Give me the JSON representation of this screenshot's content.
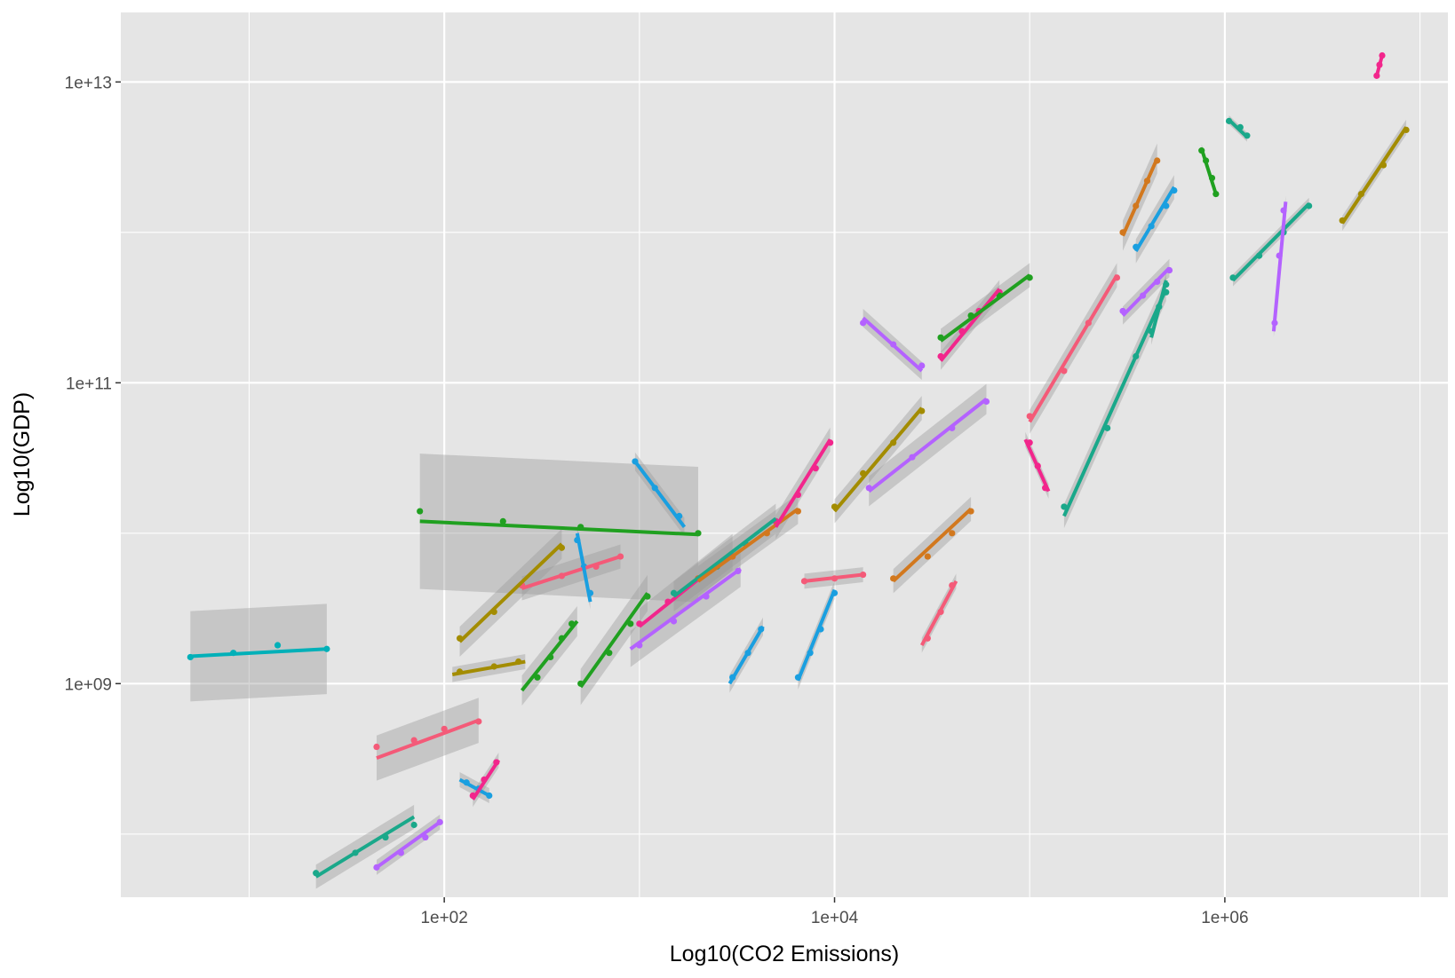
{
  "chart_data": {
    "type": "scatter",
    "title": "",
    "xlabel": "Log10(CO2 Emissions)",
    "ylabel": "Log10(GDP)",
    "x_scale": "log10",
    "y_scale": "log10",
    "xlim": [
      2.2,
      13900000
    ],
    "ylim": [
      38000000,
      29000000000000
    ],
    "x_ticks": [
      {
        "value": 100,
        "label": "1e+02"
      },
      {
        "value": 10000,
        "label": "1e+04"
      },
      {
        "value": 1000000,
        "label": "1e+06"
      }
    ],
    "y_ticks": [
      {
        "value": 1000000000,
        "label": "1e+09"
      },
      {
        "value": 100000000000,
        "label": "1e+11"
      },
      {
        "value": 10000000000000,
        "label": "1e+13"
      }
    ],
    "grid": true,
    "legend": "none",
    "background_color": "#e5e5e5",
    "grid_color": "#ffffff",
    "ribbon_color": "#999999",
    "series": [
      {
        "color": "#00b0b8",
        "x": [
          5,
          8.3,
          14,
          25
        ],
        "y": [
          1500000000,
          1600000000,
          1800000000,
          1700000000
        ],
        "fit": [
          [
            5,
            1520000000
          ],
          [
            25,
            1700000000
          ]
        ],
        "band": 0.3
      },
      {
        "color": "#20a020",
        "x": [
          75,
          200,
          500,
          2000
        ],
        "y": [
          14000000000,
          12000000000,
          11000000000,
          10000000000
        ],
        "fit": [
          [
            75,
            12000000000
          ],
          [
            2000,
            9800000000
          ]
        ],
        "band": 0.45
      },
      {
        "color": "#f45a78",
        "x": [
          45,
          70,
          100,
          150
        ],
        "y": [
          380000000,
          420000000,
          500000000,
          560000000
        ],
        "fit": [
          [
            45,
            320000000
          ],
          [
            150,
            570000000
          ]
        ],
        "band": 0.15
      },
      {
        "color": "#1aa88a",
        "x": [
          22,
          35,
          50,
          70
        ],
        "y": [
          55000000,
          75000000,
          95000000,
          115000000
        ],
        "fit": [
          [
            22,
            52000000
          ],
          [
            70,
            130000000
          ]
        ],
        "band": 0.08
      },
      {
        "color": "#b462ff",
        "x": [
          45,
          60,
          80,
          95
        ],
        "y": [
          60000000,
          75000000,
          95000000,
          120000000
        ],
        "fit": [
          [
            45,
            60000000
          ],
          [
            95,
            120000000
          ]
        ],
        "band": 0.05
      },
      {
        "color": "#a38c00",
        "x": [
          120,
          180,
          250,
          400
        ],
        "y": [
          2000000000,
          3000000000,
          4500000000,
          8000000000
        ],
        "fit": [
          [
            120,
            1900000000
          ],
          [
            400,
            8500000000
          ]
        ],
        "band": 0.1
      },
      {
        "color": "#1a9fe0",
        "x": [
          130,
          150,
          170
        ],
        "y": [
          220000000,
          200000000,
          180000000
        ],
        "fit": [
          [
            120,
            230000000
          ],
          [
            170,
            180000000
          ]
        ],
        "band": 0.05
      },
      {
        "color": "#a38c00",
        "x": [
          120,
          180,
          240
        ],
        "y": [
          1200000000,
          1300000000,
          1400000000
        ],
        "fit": [
          [
            110,
            1150000000
          ],
          [
            260,
            1400000000
          ]
        ],
        "band": 0.05
      },
      {
        "color": "#f2268c",
        "x": [
          140,
          160,
          185
        ],
        "y": [
          180000000,
          230000000,
          300000000
        ],
        "fit": [
          [
            140,
            170000000
          ],
          [
            190,
            310000000
          ]
        ],
        "band": 0.05
      },
      {
        "color": "#f45a78",
        "x": [
          250,
          400,
          600,
          800
        ],
        "y": [
          4500000000,
          5200000000,
          6000000000,
          7000000000
        ],
        "fit": [
          [
            250,
            4300000000
          ],
          [
            800,
            7000000000
          ]
        ],
        "band": 0.08
      },
      {
        "color": "#1a9fe0",
        "x": [
          950,
          1200,
          1600
        ],
        "y": [
          30000000000,
          20000000000,
          13000000000
        ],
        "fit": [
          [
            950,
            30000000000
          ],
          [
            1700,
            11000000000
          ]
        ],
        "band": 0.06
      },
      {
        "color": "#20a020",
        "x": [
          300,
          350,
          400,
          450
        ],
        "y": [
          1100000000,
          1500000000,
          2000000000,
          2500000000
        ],
        "fit": [
          [
            250,
            900000000
          ],
          [
            480,
            2600000000
          ]
        ],
        "band": 0.1
      },
      {
        "color": "#1a9fe0",
        "x": [
          480,
          520,
          560
        ],
        "y": [
          9000000000,
          6000000000,
          4000000000
        ],
        "fit": [
          [
            480,
            10000000000
          ],
          [
            560,
            3500000000
          ]
        ],
        "band": 0.05
      },
      {
        "color": "#f2268c",
        "x": [
          1000,
          1400,
          2000,
          3000
        ],
        "y": [
          2500000000,
          3500000000,
          5000000000,
          7000000000
        ],
        "fit": [
          [
            1000,
            2400000000
          ],
          [
            3000,
            7500000000
          ]
        ],
        "band": 0.12
      },
      {
        "color": "#b462ff",
        "x": [
          1000,
          1500,
          2200,
          3200
        ],
        "y": [
          1800000000,
          2600000000,
          3800000000,
          5600000000
        ],
        "fit": [
          [
            900,
            1700000000
          ],
          [
            3300,
            5800000000
          ]
        ],
        "band": 0.12
      },
      {
        "color": "#1aa88a",
        "x": [
          1500,
          2500,
          3500,
          5000
        ],
        "y": [
          4000000000,
          6000000000,
          8500000000,
          12000000000
        ],
        "fit": [
          [
            1500,
            3800000000
          ],
          [
            5000,
            12500000000
          ]
        ],
        "band": 0.1
      },
      {
        "color": "#20a020",
        "x": [
          500,
          700,
          900,
          1100
        ],
        "y": [
          1000000000,
          1600000000,
          2500000000,
          3800000000
        ],
        "fit": [
          [
            500,
            950000000
          ],
          [
            1100,
            4000000000
          ]
        ],
        "band": 0.12
      },
      {
        "color": "#d2781e",
        "x": [
          2000,
          3000,
          4500,
          6500
        ],
        "y": [
          5000000000,
          7000000000,
          10000000000,
          14000000000
        ],
        "fit": [
          [
            2000,
            4800000000
          ],
          [
            6500,
            14500000000
          ]
        ],
        "band": 0.1
      },
      {
        "color": "#1a9fe0",
        "x": [
          3000,
          3600,
          4200
        ],
        "y": [
          1100000000,
          1600000000,
          2300000000
        ],
        "fit": [
          [
            2900,
            1000000000
          ],
          [
            4300,
            2400000000
          ]
        ],
        "band": 0.06
      },
      {
        "color": "#1a9fe0",
        "x": [
          6500,
          7500,
          8500,
          10000
        ],
        "y": [
          1100000000,
          1600000000,
          2300000000,
          4000000000
        ],
        "fit": [
          [
            6500,
            1050000000
          ],
          [
            10000,
            4200000000
          ]
        ],
        "band": 0.06
      },
      {
        "color": "#f45a78",
        "x": [
          7000,
          10000,
          14000
        ],
        "y": [
          4800000000,
          5000000000,
          5300000000
        ],
        "fit": [
          [
            7000,
            4800000000
          ],
          [
            14000,
            5300000000
          ]
        ],
        "band": 0.05
      },
      {
        "color": "#f2268c",
        "x": [
          5000,
          6500,
          8000,
          9500
        ],
        "y": [
          12000000000,
          18000000000,
          27000000000,
          40000000000
        ],
        "fit": [
          [
            5000,
            11000000000
          ],
          [
            9500,
            42000000000
          ]
        ],
        "band": 0.08
      },
      {
        "color": "#a38c00",
        "x": [
          10000,
          14000,
          20000,
          28000
        ],
        "y": [
          15000000000,
          25000000000,
          40000000000,
          65000000000
        ],
        "fit": [
          [
            10000,
            14000000000
          ],
          [
            28000,
            68000000000
          ]
        ],
        "band": 0.08
      },
      {
        "color": "#b462ff",
        "x": [
          15000,
          25000,
          40000,
          60000
        ],
        "y": [
          20000000000,
          32000000000,
          50000000000,
          75000000000
        ],
        "fit": [
          [
            15000,
            19000000000
          ],
          [
            60000,
            78000000000
          ]
        ],
        "band": 0.1
      },
      {
        "color": "#f45a78",
        "x": [
          30000,
          35000,
          40000
        ],
        "y": [
          2000000000,
          3000000000,
          4500000000
        ],
        "fit": [
          [
            28000,
            1800000000
          ],
          [
            42000,
            4800000000
          ]
        ],
        "band": 0.05
      },
      {
        "color": "#d2781e",
        "x": [
          20000,
          30000,
          40000,
          50000
        ],
        "y": [
          5000000000,
          7000000000,
          10000000000,
          14000000000
        ],
        "fit": [
          [
            20000,
            4800000000
          ],
          [
            50000,
            14500000000
          ]
        ],
        "band": 0.08
      },
      {
        "color": "#b462ff",
        "x": [
          14000,
          20000,
          28000
        ],
        "y": [
          250000000000,
          180000000000,
          130000000000
        ],
        "fit": [
          [
            14000,
            270000000000
          ],
          [
            28000,
            120000000000
          ]
        ],
        "band": 0.06
      },
      {
        "color": "#f2268c",
        "x": [
          35000,
          45000,
          55000,
          70000
        ],
        "y": [
          150000000000,
          220000000000,
          300000000000,
          400000000000
        ],
        "fit": [
          [
            35000,
            140000000000
          ],
          [
            70000,
            420000000000
          ]
        ],
        "band": 0.06
      },
      {
        "color": "#20a020",
        "x": [
          35000,
          50000,
          70000,
          100000
        ],
        "y": [
          200000000000,
          280000000000,
          380000000000,
          500000000000
        ],
        "fit": [
          [
            35000,
            190000000000
          ],
          [
            100000,
            520000000000
          ]
        ],
        "band": 0.08
      },
      {
        "color": "#f2268c",
        "x": [
          100000,
          110000,
          120000
        ],
        "y": [
          40000000000,
          28000000000,
          20000000000
        ],
        "fit": [
          [
            95000,
            42000000000
          ],
          [
            125000,
            19000000000
          ]
        ],
        "band": 0.05
      },
      {
        "color": "#1aa88a",
        "x": [
          150000,
          250000,
          350000,
          500000
        ],
        "y": [
          15000000000,
          50000000000,
          150000000000,
          400000000000
        ],
        "fit": [
          [
            150000,
            13000000000
          ],
          [
            500000,
            420000000000
          ]
        ],
        "band": 0.08
      },
      {
        "color": "#f45a78",
        "x": [
          100000,
          150000,
          200000,
          280000
        ],
        "y": [
          60000000000,
          120000000000,
          250000000000,
          500000000000
        ],
        "fit": [
          [
            100000,
            55000000000
          ],
          [
            280000,
            520000000000
          ]
        ],
        "band": 0.08
      },
      {
        "color": "#d2781e",
        "x": [
          300000,
          350000,
          400000,
          450000
        ],
        "y": [
          1000000000000,
          1500000000000,
          2200000000000,
          3000000000000
        ],
        "fit": [
          [
            300000,
            950000000000
          ],
          [
            450000,
            3100000000000
          ]
        ],
        "band": 0.1
      },
      {
        "color": "#1a9fe0",
        "x": [
          350000,
          420000,
          500000,
          550000
        ],
        "y": [
          800000000000,
          1100000000000,
          1500000000000,
          1900000000000
        ],
        "fit": [
          [
            350000,
            750000000000
          ],
          [
            550000,
            2000000000000
          ]
        ],
        "band": 0.08
      },
      {
        "color": "#b462ff",
        "x": [
          300000,
          380000,
          450000,
          520000
        ],
        "y": [
          300000000000,
          380000000000,
          470000000000,
          560000000000
        ],
        "fit": [
          [
            300000,
            280000000000
          ],
          [
            520000,
            580000000000
          ]
        ],
        "band": 0.06
      },
      {
        "color": "#1aa88a",
        "x": [
          420000,
          460000,
          500000
        ],
        "y": [
          220000000000,
          320000000000,
          450000000000
        ],
        "fit": [
          [
            420000,
            200000000000
          ],
          [
            500000,
            480000000000
          ]
        ],
        "band": 0.05
      },
      {
        "color": "#20a020",
        "x": [
          760000,
          800000,
          860000,
          900000
        ],
        "y": [
          3500000000000,
          3000000000000,
          2300000000000,
          1800000000000
        ],
        "fit": [
          [
            760000,
            3600000000000
          ],
          [
            900000,
            1800000000000
          ]
        ],
        "band": 0.03
      },
      {
        "color": "#1aa88a",
        "x": [
          1050000,
          1200000,
          1300000
        ],
        "y": [
          5500000000000,
          5000000000000,
          4400000000000
        ],
        "fit": [
          [
            1050000,
            5600000000000
          ],
          [
            1300000,
            4300000000000
          ]
        ],
        "band": 0.03
      },
      {
        "color": "#1aa88a",
        "x": [
          1100000,
          1500000,
          2000000,
          2700000
        ],
        "y": [
          500000000000,
          700000000000,
          1000000000000,
          1500000000000
        ],
        "fit": [
          [
            1100000,
            480000000000
          ],
          [
            2700000,
            1550000000000
          ]
        ],
        "band": 0.04
      },
      {
        "color": "#b462ff",
        "x": [
          1800000,
          1900000,
          2000000
        ],
        "y": [
          250000000000,
          700000000000,
          1400000000000
        ],
        "fit": [
          [
            1780000,
            220000000000
          ],
          [
            2050000,
            1600000000000
          ]
        ],
        "band": 0.04
      },
      {
        "color": "#f2268c",
        "x": [
          6000000,
          6200000,
          6400000
        ],
        "y": [
          11000000000000,
          13000000000000,
          15000000000000
        ],
        "fit": [
          [
            6000000,
            11000000000000
          ],
          [
            6400000,
            15000000000000
          ]
        ],
        "band": 0.0
      },
      {
        "color": "#a38c00",
        "x": [
          4000000,
          5000000,
          6500000,
          8500000
        ],
        "y": [
          1200000000000,
          1800000000000,
          2800000000000,
          4800000000000
        ],
        "fit": [
          [
            4000000,
            1150000000000
          ],
          [
            8500000,
            5000000000000
          ]
        ],
        "band": 0.05
      }
    ]
  }
}
